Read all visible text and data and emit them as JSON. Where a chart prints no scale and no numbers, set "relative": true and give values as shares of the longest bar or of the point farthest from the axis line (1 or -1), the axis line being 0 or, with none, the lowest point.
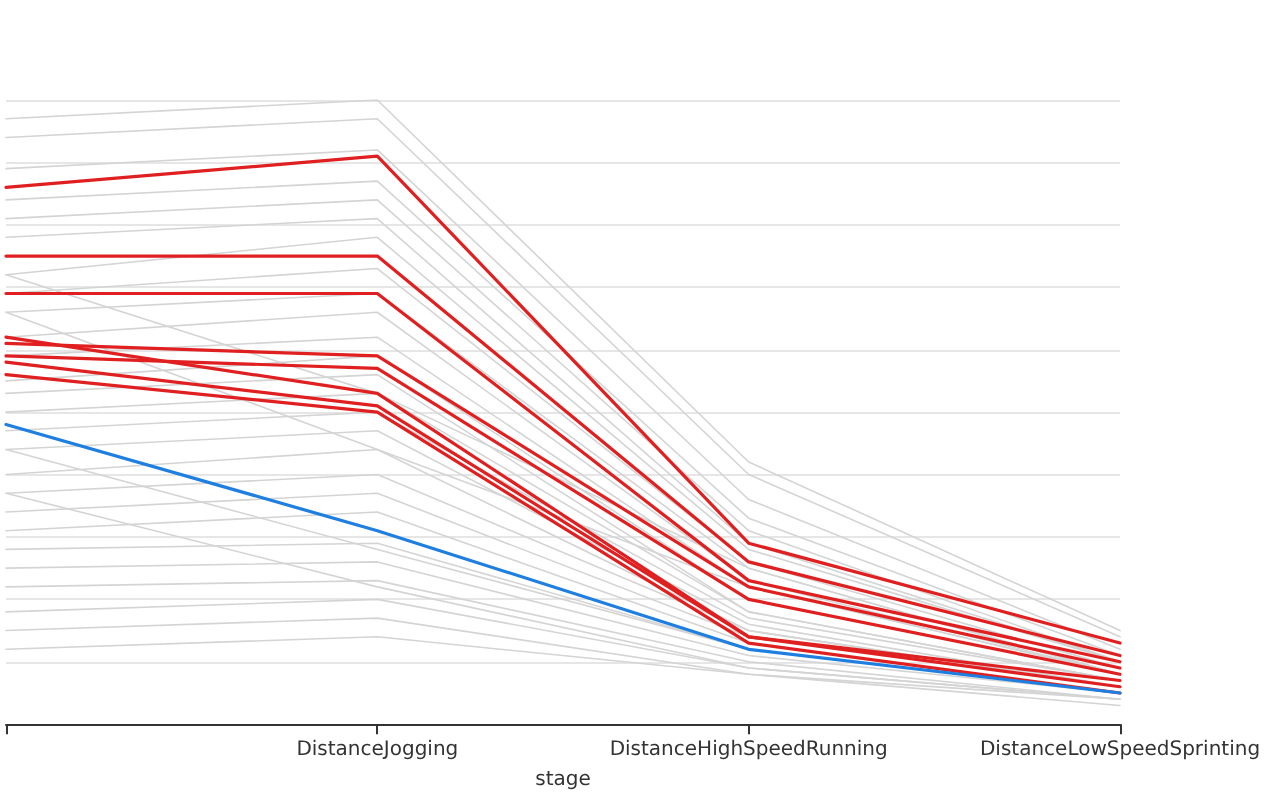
{
  "chart_data": {
    "type": "line",
    "relative": true,
    "xlabel": "stage",
    "grid": "y",
    "marker": "none",
    "line_style": "solid",
    "categories": [
      null,
      "DistanceJogging",
      "DistanceHighSpeedRunning",
      "DistanceLowSpeedSprinting"
    ],
    "series": [
      {
        "color": "#d4d4d4",
        "values": [
          0.97,
          1.0,
          0.42,
          0.15
        ]
      },
      {
        "color": "#d4d4d4",
        "values": [
          0.94,
          0.97,
          0.4,
          0.14
        ]
      },
      {
        "color": "#d4d4d4",
        "values": [
          0.89,
          0.92,
          0.36,
          0.12
        ]
      },
      {
        "color": "#d4d4d4",
        "values": [
          0.84,
          0.87,
          0.33,
          0.11
        ]
      },
      {
        "color": "#d4d4d4",
        "values": [
          0.81,
          0.84,
          0.31,
          0.1
        ]
      },
      {
        "color": "#d4d4d4",
        "values": [
          0.78,
          0.81,
          0.29,
          0.1
        ]
      },
      {
        "color": "#d4d4d4",
        "values": [
          0.72,
          0.78,
          0.28,
          0.1
        ]
      },
      {
        "color": "#d4d4d4",
        "values": [
          0.69,
          0.73,
          0.26,
          0.09
        ]
      },
      {
        "color": "#d4d4d4",
        "values": [
          0.66,
          0.69,
          0.25,
          0.08
        ]
      },
      {
        "color": "#d4d4d4",
        "values": [
          0.62,
          0.66,
          0.23,
          0.08
        ]
      },
      {
        "color": "#d4d4d4",
        "values": [
          0.59,
          0.62,
          0.22,
          0.08
        ]
      },
      {
        "color": "#d4d4d4",
        "values": [
          0.55,
          0.59,
          0.2,
          0.08
        ]
      },
      {
        "color": "#d4d4d4",
        "values": [
          0.53,
          0.56,
          0.18,
          0.07
        ]
      },
      {
        "color": "#d4d4d4",
        "values": [
          0.5,
          0.53,
          0.18,
          0.07
        ]
      },
      {
        "color": "#d4d4d4",
        "values": [
          0.47,
          0.5,
          0.17,
          0.07
        ]
      },
      {
        "color": "#d4d4d4",
        "values": [
          0.44,
          0.47,
          0.16,
          0.06
        ]
      },
      {
        "color": "#d4d4d4",
        "values": [
          0.4,
          0.44,
          0.15,
          0.06
        ]
      },
      {
        "color": "#d4d4d4",
        "values": [
          0.37,
          0.4,
          0.15,
          0.06
        ]
      },
      {
        "color": "#d4d4d4",
        "values": [
          0.34,
          0.37,
          0.14,
          0.06
        ]
      },
      {
        "color": "#d4d4d4",
        "values": [
          0.31,
          0.34,
          0.13,
          0.05
        ]
      },
      {
        "color": "#d4d4d4",
        "values": [
          0.28,
          0.29,
          0.12,
          0.05
        ]
      },
      {
        "color": "#d4d4d4",
        "values": [
          0.25,
          0.26,
          0.11,
          0.05
        ]
      },
      {
        "color": "#d4d4d4",
        "values": [
          0.22,
          0.23,
          0.1,
          0.04
        ]
      },
      {
        "color": "#d4d4d4",
        "values": [
          0.18,
          0.2,
          0.09,
          0.04
        ]
      },
      {
        "color": "#d4d4d4",
        "values": [
          0.15,
          0.17,
          0.08,
          0.04
        ]
      },
      {
        "color": "#d4d4d4",
        "values": [
          0.12,
          0.14,
          0.08,
          0.03
        ]
      },
      {
        "color": "#d4d4d4",
        "values": [
          0.66,
          0.44,
          0.22,
          0.08
        ]
      },
      {
        "color": "#d4d4d4",
        "values": [
          0.72,
          0.53,
          0.25,
          0.08
        ]
      },
      {
        "color": "#d4d4d4",
        "values": [
          0.37,
          0.22,
          0.09,
          0.04
        ]
      },
      {
        "color": "#d4d4d4",
        "values": [
          0.44,
          0.28,
          0.12,
          0.05
        ]
      },
      {
        "color": "#e02020",
        "values": [
          0.86,
          0.91,
          0.29,
          0.13
        ]
      },
      {
        "color": "#e02020",
        "values": [
          0.75,
          0.75,
          0.26,
          0.11
        ]
      },
      {
        "color": "#e02020",
        "values": [
          0.69,
          0.69,
          0.23,
          0.1
        ]
      },
      {
        "color": "#e02020",
        "values": [
          0.61,
          0.59,
          0.22,
          0.09
        ]
      },
      {
        "color": "#e02020",
        "values": [
          0.59,
          0.57,
          0.2,
          0.08
        ]
      },
      {
        "color": "#e02020",
        "values": [
          0.62,
          0.53,
          0.14,
          0.07
        ]
      },
      {
        "color": "#e02020",
        "values": [
          0.58,
          0.51,
          0.14,
          0.06
        ]
      },
      {
        "color": "#e02020",
        "values": [
          0.56,
          0.5,
          0.13,
          0.05
        ]
      },
      {
        "color": "#1e7fe0",
        "values": [
          0.48,
          0.31,
          0.12,
          0.05
        ]
      }
    ]
  }
}
